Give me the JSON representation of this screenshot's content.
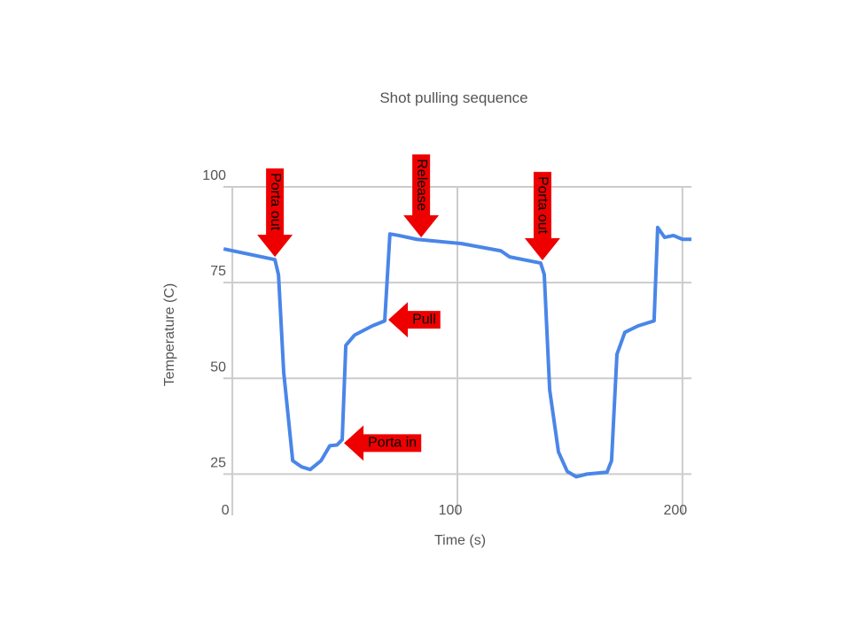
{
  "chart_data": {
    "type": "line",
    "title": "Shot pulling sequence",
    "x_label": "Time (s)",
    "y_label": "Temperature (C)",
    "xlim": [
      -4,
      204
    ],
    "ylim": [
      20,
      100
    ],
    "xticks": [
      0,
      100,
      200
    ],
    "yticks": [
      25,
      50,
      75,
      100
    ],
    "grid": true,
    "series": [
      {
        "name": "Temperature",
        "color": "#4a86e8",
        "x": [
          -3.9,
          18.9,
          20.5,
          22.8,
          26.8,
          30.7,
          34.6,
          39.4,
          43.3,
          46.5,
          48.8,
          50.4,
          54.3,
          62.2,
          67.7,
          70,
          74,
          81.9,
          101.6,
          119.3,
          123.2,
          137,
          138.6,
          141,
          144.9,
          148.8,
          152.8,
          157.5,
          166.5,
          168.5,
          170.9,
          174.4,
          180.3,
          187.4,
          189,
          192.1,
          196,
          200,
          204
        ],
        "values": [
          83.8,
          81,
          77,
          51.6,
          28.5,
          26.9,
          26.2,
          28.5,
          32.4,
          32.6,
          34,
          58.6,
          61.3,
          63.7,
          65,
          87.7,
          87.3,
          86.3,
          85.2,
          83.3,
          81.7,
          80.1,
          77.1,
          47,
          30.8,
          25.7,
          24.3,
          25,
          25.5,
          28.5,
          56.3,
          62,
          63.7,
          65,
          89.4,
          86.8,
          87.3,
          86.3,
          86.3
        ]
      }
    ],
    "annotations": [
      {
        "label": "Porta out",
        "x": 18.9,
        "y": 81.7,
        "direction": "down"
      },
      {
        "label": "Release",
        "x": 83.9,
        "y": 86.8,
        "direction": "down"
      },
      {
        "label": "Porta out",
        "x": 137.8,
        "y": 80.8,
        "direction": "down"
      },
      {
        "label": "Pull",
        "x": 69.3,
        "y": 65.3,
        "direction": "left"
      },
      {
        "label": "Porta in",
        "x": 49.6,
        "y": 33.1,
        "direction": "left"
      }
    ],
    "annotation_color": "#ee0000"
  }
}
